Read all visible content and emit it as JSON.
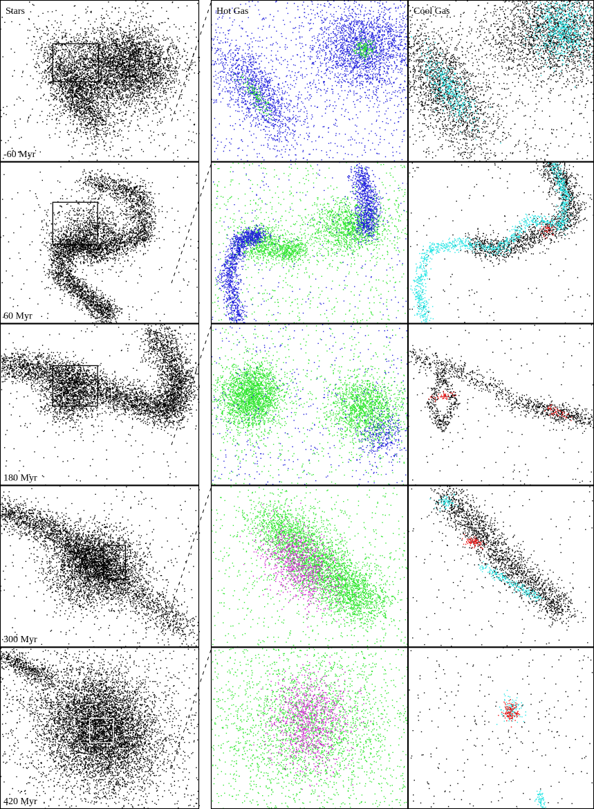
{
  "columns": [
    "Stars",
    "Hot Gas",
    "Cool Gas"
  ],
  "time_labels": [
    "-60 Myr",
    "60 Myr",
    "180 Myr",
    "300 Myr",
    "420 Myr"
  ]
}
